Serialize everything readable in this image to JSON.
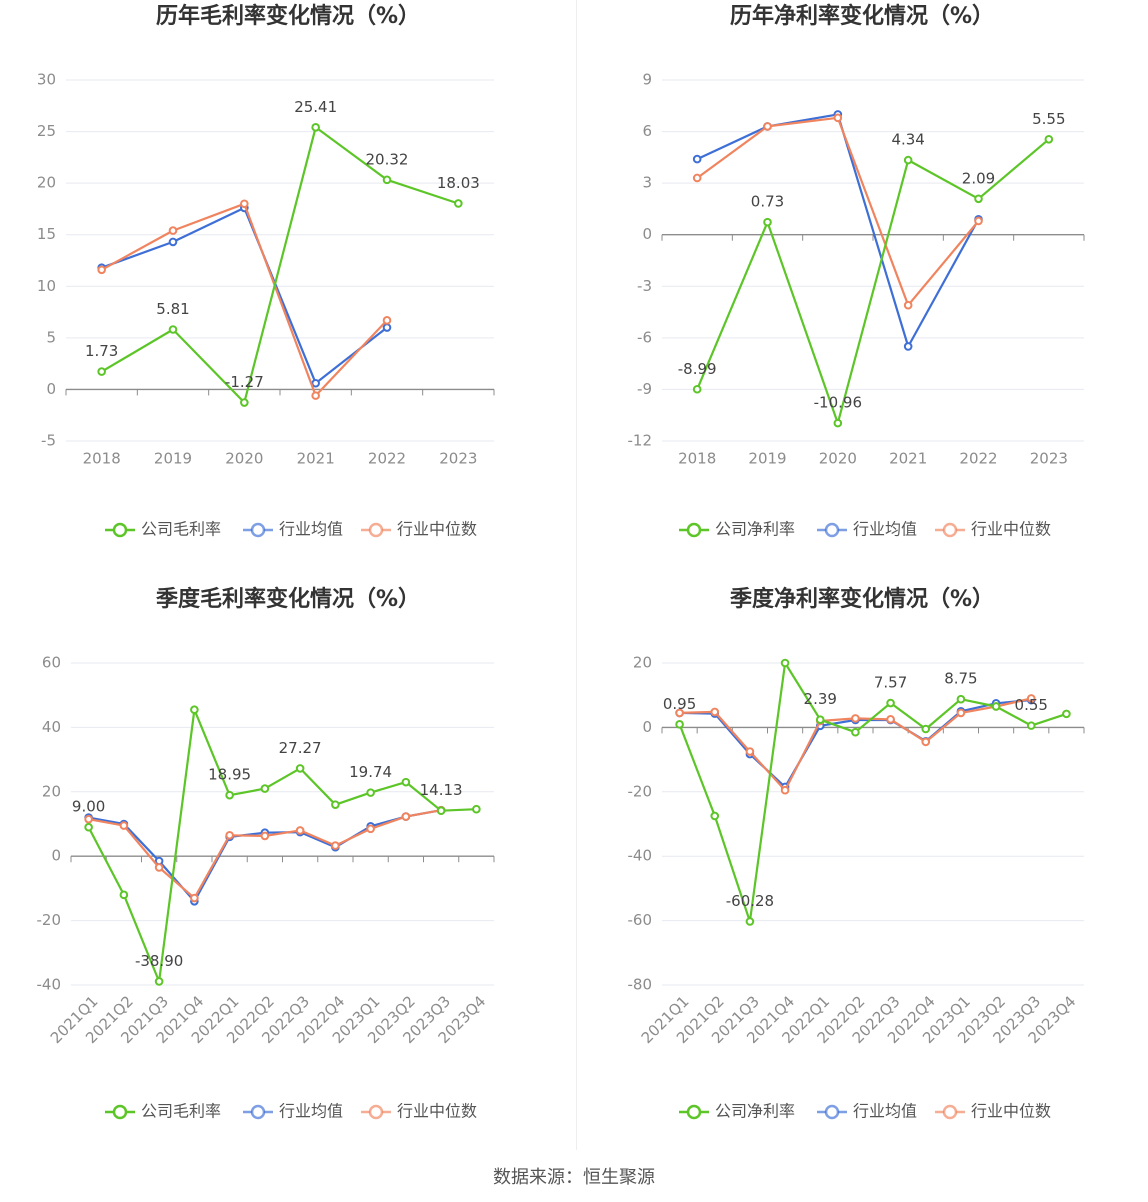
{
  "colors": {
    "company": "#5cc527",
    "avg": "#3e6fd6",
    "median": "#f0845f",
    "grid": "#e6e9f0",
    "axis": "#8c8c8c",
    "tick_text": "#8c8c8c",
    "title": "#333333"
  },
  "footer": {
    "source": "数据来源：恒生聚源"
  },
  "chart_data": [
    {
      "type": "line",
      "title": "历年毛利率变化情况（%）",
      "categories": [
        "2018",
        "2019",
        "2020",
        "2021",
        "2022",
        "2023"
      ],
      "ylim": [
        -5,
        30
      ],
      "yticks": [
        -5,
        0,
        5,
        10,
        15,
        20,
        25,
        30
      ],
      "grid": true,
      "legend_position": "bottom",
      "series": [
        {
          "name": "公司毛利率",
          "values": [
            1.73,
            5.81,
            -1.27,
            25.41,
            20.32,
            18.03
          ],
          "labels": [
            "1.73",
            "5.81",
            "-1.27",
            "25.41",
            "20.32",
            "18.03"
          ]
        },
        {
          "name": "行业均值",
          "values": [
            11.8,
            14.3,
            17.6,
            0.6,
            6.0,
            null
          ]
        },
        {
          "name": "行业中位数",
          "values": [
            11.6,
            15.4,
            18.0,
            -0.6,
            6.7,
            null
          ]
        }
      ]
    },
    {
      "type": "line",
      "title": "历年净利率变化情况（%）",
      "categories": [
        "2018",
        "2019",
        "2020",
        "2021",
        "2022",
        "2023"
      ],
      "ylim": [
        -12,
        9
      ],
      "yticks": [
        -12,
        -9,
        -6,
        -3,
        0,
        3,
        6,
        9
      ],
      "grid": true,
      "legend_position": "bottom",
      "series": [
        {
          "name": "公司净利率",
          "values": [
            -8.99,
            0.73,
            -10.96,
            4.34,
            2.09,
            5.55
          ],
          "labels": [
            "-8.99",
            "0.73",
            "-10.96",
            "4.34",
            "2.09",
            "5.55"
          ]
        },
        {
          "name": "行业均值",
          "values": [
            4.4,
            6.3,
            7.0,
            -6.5,
            0.9,
            null
          ]
        },
        {
          "name": "行业中位数",
          "values": [
            3.3,
            6.3,
            6.8,
            -4.1,
            0.8,
            null
          ]
        }
      ]
    },
    {
      "type": "line",
      "title": "季度毛利率变化情况（%）",
      "categories": [
        "2021Q1",
        "2021Q2",
        "2021Q3",
        "2021Q4",
        "2022Q1",
        "2022Q2",
        "2022Q3",
        "2022Q4",
        "2023Q1",
        "2023Q2",
        "2023Q3",
        "2023Q4"
      ],
      "ylim": [
        -40,
        60
      ],
      "yticks": [
        -40,
        -20,
        0,
        20,
        40,
        60
      ],
      "grid": true,
      "legend_position": "bottom",
      "series": [
        {
          "name": "公司毛利率",
          "values": [
            9.0,
            -12.0,
            -38.9,
            45.5,
            18.95,
            21.0,
            27.27,
            16.0,
            19.74,
            23.0,
            14.13,
            14.6
          ],
          "labels": [
            "9.00",
            null,
            "-38.90",
            null,
            "18.95",
            null,
            "27.27",
            null,
            "19.74",
            null,
            "14.13",
            null
          ]
        },
        {
          "name": "行业均值",
          "values": [
            12.0,
            10.0,
            -1.5,
            -14.0,
            6.0,
            7.3,
            7.5,
            2.8,
            9.3,
            12.3,
            14.3,
            null
          ]
        },
        {
          "name": "行业中位数",
          "values": [
            11.5,
            9.5,
            -3.5,
            -13.0,
            6.5,
            6.3,
            8.0,
            3.3,
            8.5,
            12.3,
            14.3,
            null
          ]
        }
      ]
    },
    {
      "type": "line",
      "title": "季度净利率变化情况（%）",
      "categories": [
        "2021Q1",
        "2021Q2",
        "2021Q3",
        "2021Q4",
        "2022Q1",
        "2022Q2",
        "2022Q3",
        "2022Q4",
        "2023Q1",
        "2023Q2",
        "2023Q3",
        "2023Q4"
      ],
      "ylim": [
        -80,
        20
      ],
      "yticks": [
        -80,
        -60,
        -40,
        -20,
        0,
        20
      ],
      "grid": true,
      "legend_position": "bottom",
      "series": [
        {
          "name": "公司净利率",
          "values": [
            0.95,
            -27.5,
            -60.28,
            20.0,
            2.39,
            -1.5,
            7.57,
            -0.5,
            8.75,
            6.5,
            0.55,
            4.2
          ],
          "labels": [
            "0.95",
            null,
            "-60.28",
            null,
            "2.39",
            null,
            "7.57",
            null,
            "8.75",
            null,
            "0.55",
            null
          ]
        },
        {
          "name": "行业均值",
          "values": [
            4.5,
            4.3,
            -8.3,
            -18.5,
            0.5,
            2.3,
            2.3,
            -4.3,
            5.0,
            7.5,
            8.5,
            null
          ]
        },
        {
          "name": "行业中位数",
          "values": [
            4.5,
            4.8,
            -7.5,
            -19.5,
            2.0,
            2.8,
            2.5,
            -4.5,
            4.5,
            6.5,
            9.0,
            null
          ]
        }
      ]
    }
  ]
}
